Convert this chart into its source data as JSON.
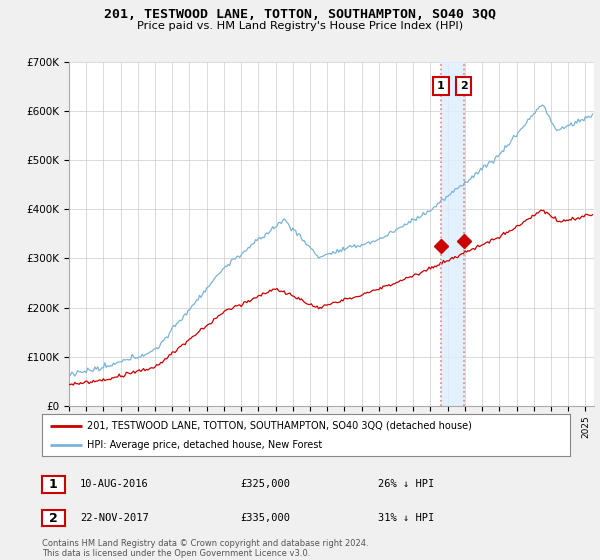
{
  "title": "201, TESTWOOD LANE, TOTTON, SOUTHAMPTON, SO40 3QQ",
  "subtitle": "Price paid vs. HM Land Registry's House Price Index (HPI)",
  "ylabel_ticks": [
    "£0",
    "£100K",
    "£200K",
    "£300K",
    "£400K",
    "£500K",
    "£600K",
    "£700K"
  ],
  "ylim": [
    0,
    700000
  ],
  "xlim_start": 1995.0,
  "xlim_end": 2025.5,
  "hpi_color": "#7ab4d8",
  "price_color": "#cc0000",
  "marker1_date": 2016.6,
  "marker2_date": 2017.92,
  "marker1_price": 325000,
  "marker2_price": 335000,
  "vline_color": "#e88080",
  "shade_color": "#ddeeff",
  "legend_box_label1": "201, TESTWOOD LANE, TOTTON, SOUTHAMPTON, SO40 3QQ (detached house)",
  "legend_box_label2": "HPI: Average price, detached house, New Forest",
  "annotation1_num": "1",
  "annotation1_date": "10-AUG-2016",
  "annotation1_price": "£325,000",
  "annotation1_hpi": "26% ↓ HPI",
  "annotation2_num": "2",
  "annotation2_date": "22-NOV-2017",
  "annotation2_price": "£335,000",
  "annotation2_hpi": "31% ↓ HPI",
  "footer": "Contains HM Land Registry data © Crown copyright and database right 2024.\nThis data is licensed under the Open Government Licence v3.0.",
  "background_color": "#f0f0f0",
  "plot_bg_color": "#ffffff",
  "grid_color": "#cccccc"
}
